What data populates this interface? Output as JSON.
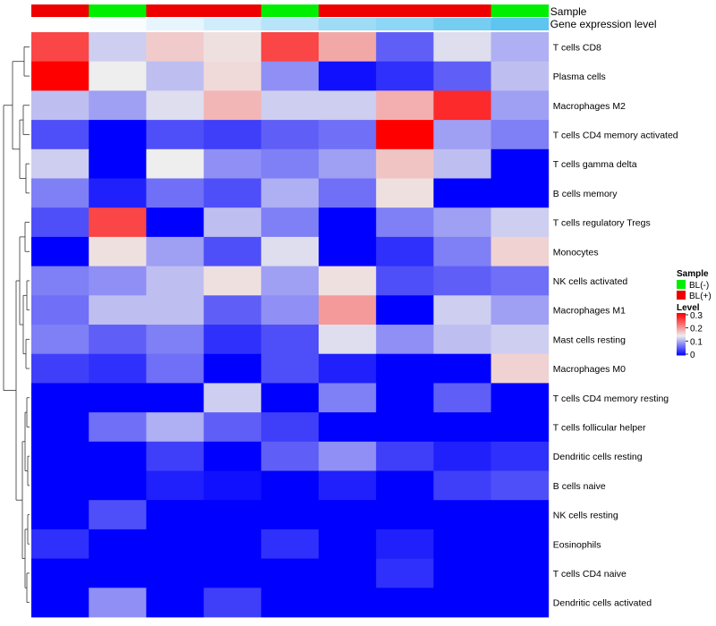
{
  "chart_data": {
    "type": "heatmap",
    "title": "",
    "xlabel": "",
    "ylabel": "",
    "rows": [
      "T cells CD8",
      "Plasma cells",
      "Macrophages M2",
      "T cells CD4 memory activated",
      "T cells gamma delta",
      "B cells memory",
      "T cells regulatory  Tregs",
      "Monocytes",
      "NK cells activated",
      "Macrophages M1",
      "Mast cells resting",
      "Macrophages M0",
      "T cells CD4 memory resting",
      "T cells follicular helper",
      "Dendritic cells resting",
      "B cells naive",
      "NK cells resting",
      "Eosinophils",
      "T cells CD4 naive",
      "Dendritic cells activated"
    ],
    "columns": 9,
    "values": [
      [
        0.27,
        0.13,
        0.175,
        0.16,
        0.27,
        0.2,
        0.06,
        0.14,
        0.11
      ],
      [
        0.32,
        0.15,
        0.12,
        0.165,
        0.09,
        0.01,
        0.03,
        0.06,
        0.12
      ],
      [
        0.12,
        0.1,
        0.14,
        0.19,
        0.13,
        0.13,
        0.195,
        0.29,
        0.1
      ],
      [
        0.05,
        0.0,
        0.05,
        0.04,
        0.06,
        0.07,
        0.32,
        0.1,
        0.08
      ],
      [
        0.13,
        0.0,
        0.15,
        0.09,
        0.08,
        0.1,
        0.18,
        0.12,
        0.0
      ],
      [
        0.08,
        0.02,
        0.07,
        0.05,
        0.11,
        0.07,
        0.16,
        0.0,
        0.0
      ],
      [
        0.05,
        0.27,
        0.0,
        0.12,
        0.08,
        0.0,
        0.08,
        0.1,
        0.13
      ],
      [
        0.0,
        0.16,
        0.1,
        0.05,
        0.14,
        0.0,
        0.03,
        0.08,
        0.17
      ],
      [
        0.08,
        0.09,
        0.12,
        0.16,
        0.1,
        0.16,
        0.05,
        0.06,
        0.07
      ],
      [
        0.07,
        0.12,
        0.12,
        0.06,
        0.09,
        0.21,
        0.0,
        0.13,
        0.1
      ],
      [
        0.08,
        0.06,
        0.08,
        0.03,
        0.05,
        0.14,
        0.09,
        0.12,
        0.13
      ],
      [
        0.04,
        0.03,
        0.07,
        0.0,
        0.05,
        0.02,
        0.0,
        0.0,
        0.17
      ],
      [
        0.0,
        0.0,
        0.0,
        0.13,
        0.0,
        0.08,
        0.0,
        0.06,
        0.0
      ],
      [
        0.0,
        0.07,
        0.11,
        0.06,
        0.04,
        0.0,
        0.0,
        0.0,
        0.0
      ],
      [
        0.0,
        0.0,
        0.04,
        0.0,
        0.06,
        0.09,
        0.04,
        0.02,
        0.03
      ],
      [
        0.0,
        0.0,
        0.02,
        0.01,
        0.0,
        0.02,
        0.0,
        0.04,
        0.05
      ],
      [
        0.0,
        0.05,
        0.0,
        0.0,
        0.0,
        0.0,
        0.0,
        0.0,
        0.0
      ],
      [
        0.03,
        0.0,
        0.0,
        0.0,
        0.03,
        0.0,
        0.02,
        0.0,
        0.0
      ],
      [
        0.0,
        0.0,
        0.0,
        0.0,
        0.0,
        0.0,
        0.03,
        0.0,
        0.0
      ],
      [
        0.0,
        0.09,
        0.0,
        0.04,
        0.0,
        0.0,
        0.0,
        0.0,
        0.0
      ]
    ],
    "color_scale": {
      "min": 0,
      "mid": 0.15,
      "max": 0.32,
      "low_color": "#0000ff",
      "mid_color": "#eeeeee",
      "high_color": "#ff0000"
    },
    "annotations": {
      "sample": {
        "title": "Sample",
        "values": [
          "BL(+)",
          "BL(-)",
          "BL(+)",
          "BL(+)",
          "BL(-)",
          "BL(+)",
          "BL(+)",
          "BL(+)",
          "BL(-)"
        ],
        "colors": {
          "BL(-)": "#00ee00",
          "BL(+)": "#ee0000"
        }
      },
      "gene_expression_level": {
        "title": "Gene expression level",
        "values": [
          0.0,
          0.03,
          0.15,
          0.3,
          0.45,
          0.6,
          0.7,
          0.85,
          1.0
        ],
        "low_color": "#ffffff",
        "high_color": "#5ec4f0"
      }
    },
    "legend": {
      "placement": "right",
      "sample_title": "Sample",
      "sample_entries": [
        {
          "label": "BL(-)",
          "color": "#00ee00"
        },
        {
          "label": "BL(+)",
          "color": "#ee0000"
        }
      ],
      "level_title": "Level",
      "level_ticks": [
        "0.3",
        "0.2",
        "0.1",
        "0"
      ],
      "level_tick_values": [
        0.3,
        0.2,
        0.1,
        0.0
      ]
    },
    "row_dendrogram": true
  }
}
